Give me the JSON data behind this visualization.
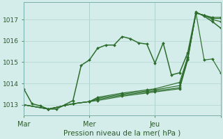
{
  "xlabel": "Pression niveau de la mer( hPa )",
  "bg_color": "#d4ecea",
  "grid_color": "#b8d8d4",
  "line_color": "#2d6e2d",
  "marker_color": "#2d6e2d",
  "ylim": [
    1012.5,
    1017.8
  ],
  "xlim": [
    0,
    48
  ],
  "yticks": [
    1013,
    1014,
    1015,
    1016,
    1017
  ],
  "xtick_positions": [
    0,
    16,
    32,
    48
  ],
  "xtick_labels": [
    "Mar",
    "Mer",
    "Jeu",
    ""
  ],
  "series": [
    {
      "x": [
        0,
        2,
        4,
        6,
        8,
        10,
        12,
        14,
        16,
        18,
        20,
        22,
        24,
        26,
        28,
        30,
        32,
        34,
        36,
        38,
        40,
        42,
        44,
        46,
        48
      ],
      "y": [
        1013.75,
        1013.05,
        1012.95,
        1012.8,
        1012.8,
        1013.0,
        1013.2,
        1014.85,
        1015.1,
        1015.65,
        1015.8,
        1015.8,
        1016.2,
        1016.1,
        1015.9,
        1015.85,
        1014.95,
        1015.9,
        1014.4,
        1014.5,
        1015.45,
        1017.35,
        1017.15,
        1016.9,
        1016.6
      ]
    },
    {
      "x": [
        0,
        6,
        12,
        16,
        18,
        24,
        30,
        32,
        38,
        40,
        42,
        44,
        46,
        48
      ],
      "y": [
        1013.0,
        1012.8,
        1013.05,
        1013.15,
        1013.2,
        1013.4,
        1013.55,
        1013.6,
        1013.75,
        1015.1,
        1017.3,
        1017.2,
        1017.0,
        1016.9
      ]
    },
    {
      "x": [
        0,
        6,
        12,
        16,
        18,
        24,
        30,
        32,
        38,
        40,
        42,
        44,
        46,
        48
      ],
      "y": [
        1013.0,
        1012.8,
        1013.05,
        1013.15,
        1013.25,
        1013.45,
        1013.6,
        1013.65,
        1013.8,
        1015.15,
        1017.3,
        1017.2,
        1017.05,
        1017.05
      ]
    },
    {
      "x": [
        0,
        6,
        12,
        16,
        18,
        24,
        30,
        32,
        38,
        40,
        42,
        44,
        46,
        48
      ],
      "y": [
        1013.0,
        1012.8,
        1013.05,
        1013.15,
        1013.3,
        1013.5,
        1013.65,
        1013.7,
        1013.9,
        1015.2,
        1017.3,
        1017.2,
        1017.1,
        1017.1
      ]
    },
    {
      "x": [
        0,
        6,
        12,
        16,
        18,
        24,
        30,
        32,
        38,
        40,
        42,
        44,
        46,
        48
      ],
      "y": [
        1013.0,
        1012.8,
        1013.05,
        1013.15,
        1013.35,
        1013.55,
        1013.7,
        1013.75,
        1014.05,
        1015.25,
        1017.3,
        1015.1,
        1015.15,
        1014.5
      ]
    }
  ],
  "vlines": [
    0,
    16,
    32,
    48
  ]
}
